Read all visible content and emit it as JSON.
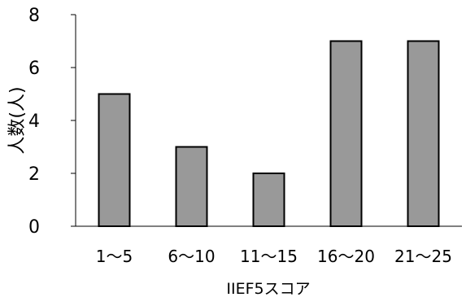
{
  "chart_data": {
    "type": "bar",
    "categories": [
      "1～5",
      "6～10",
      "11～15",
      "16～20",
      "21～25"
    ],
    "values": [
      5,
      3,
      2,
      7,
      7
    ],
    "xlabel": "IIEF5スコア",
    "ylabel": "人数(人)",
    "ylim": [
      0,
      8
    ],
    "yticks": [
      0,
      2,
      4,
      6,
      8
    ],
    "grid": false,
    "colors": {
      "bar_fill": "#999999",
      "bar_stroke": "#000000",
      "axis": "#000000"
    }
  }
}
